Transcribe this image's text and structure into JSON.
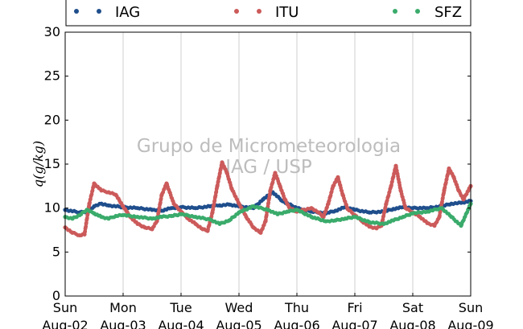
{
  "chart_data": {
    "type": "scatter",
    "title": "",
    "ylabel": "q(g/kg)",
    "xlabel": "",
    "ylim": [
      0,
      30
    ],
    "yticks": [
      0,
      5,
      10,
      15,
      20,
      25,
      30
    ],
    "xlim": [
      "2015-08-02T00:00",
      "2015-08-09T00:00"
    ],
    "xticks": [
      {
        "x": "2015-08-02T00:00",
        "day": "Sun",
        "date": "Aug-02"
      },
      {
        "x": "2015-08-03T00:00",
        "day": "Mon",
        "date": "Aug-03"
      },
      {
        "x": "2015-08-04T00:00",
        "day": "Tue",
        "date": "Aug-04"
      },
      {
        "x": "2015-08-05T00:00",
        "day": "Wed",
        "date": "Aug-05"
      },
      {
        "x": "2015-08-06T00:00",
        "day": "Thu",
        "date": "Aug-06"
      },
      {
        "x": "2015-08-07T00:00",
        "day": "Fri",
        "date": "Aug-07"
      },
      {
        "x": "2015-08-08T00:00",
        "day": "Sat",
        "date": "Aug-08"
      },
      {
        "x": "2015-08-09T00:00",
        "day": "Sun",
        "date": "Aug-09"
      }
    ],
    "grid": "vertical",
    "legend_position": "top",
    "watermark": [
      "Grupo de Micrometeorologia",
      "IAG / USP"
    ],
    "series": [
      {
        "name": "IAG",
        "color": "#1f4e8c",
        "x": [
          "2015-08-02T00:00",
          "2015-08-02T06:00",
          "2015-08-02T09:00",
          "2015-08-02T12:00",
          "2015-08-02T15:00",
          "2015-08-02T18:00",
          "2015-08-03T00:00",
          "2015-08-03T06:00",
          "2015-08-03T12:00",
          "2015-08-03T16:00",
          "2015-08-03T20:00",
          "2015-08-04T00:00",
          "2015-08-04T06:00",
          "2015-08-04T12:00",
          "2015-08-04T16:00",
          "2015-08-04T20:00",
          "2015-08-05T00:00",
          "2015-08-05T06:00",
          "2015-08-05T10:00",
          "2015-08-05T14:00",
          "2015-08-05T18:00",
          "2015-08-06T00:00",
          "2015-08-06T06:00",
          "2015-08-06T12:00",
          "2015-08-06T16:00",
          "2015-08-06T20:00",
          "2015-08-07T00:00",
          "2015-08-07T06:00",
          "2015-08-07T12:00",
          "2015-08-07T16:00",
          "2015-08-07T20:00",
          "2015-08-08T00:00",
          "2015-08-08T06:00",
          "2015-08-08T12:00",
          "2015-08-08T16:00",
          "2015-08-08T20:00",
          "2015-08-09T00:00"
        ],
        "y": [
          9.8,
          9.5,
          9.6,
          10.2,
          10.5,
          10.3,
          10.1,
          10.0,
          9.8,
          9.7,
          10.0,
          10.1,
          10.0,
          10.2,
          10.3,
          10.4,
          10.2,
          10.0,
          11.0,
          11.8,
          10.8,
          10.0,
          9.6,
          9.4,
          9.7,
          10.1,
          9.8,
          9.5,
          9.6,
          9.9,
          10.1,
          10.0,
          10.0,
          10.2,
          10.5,
          10.6,
          10.8
        ]
      },
      {
        "name": "ITU",
        "color": "#cc5a5a",
        "x": [
          "2015-08-02T00:00",
          "2015-08-02T03:00",
          "2015-08-02T06:00",
          "2015-08-02T08:00",
          "2015-08-02T10:00",
          "2015-08-02T12:00",
          "2015-08-02T15:00",
          "2015-08-02T18:00",
          "2015-08-02T21:00",
          "2015-08-03T00:00",
          "2015-08-03T03:00",
          "2015-08-03T06:00",
          "2015-08-03T09:00",
          "2015-08-03T12:00",
          "2015-08-03T14:00",
          "2015-08-03T16:00",
          "2015-08-03T18:00",
          "2015-08-03T21:00",
          "2015-08-04T00:00",
          "2015-08-04T03:00",
          "2015-08-04T06:00",
          "2015-08-04T09:00",
          "2015-08-04T11:00",
          "2015-08-04T13:00",
          "2015-08-04T15:00",
          "2015-08-04T17:00",
          "2015-08-04T19:00",
          "2015-08-04T21:00",
          "2015-08-05T00:00",
          "2015-08-05T03:00",
          "2015-08-05T06:00",
          "2015-08-05T09:00",
          "2015-08-05T11:00",
          "2015-08-05T13:00",
          "2015-08-05T15:00",
          "2015-08-05T17:00",
          "2015-08-05T19:00",
          "2015-08-05T21:00",
          "2015-08-06T00:00",
          "2015-08-06T03:00",
          "2015-08-06T06:00",
          "2015-08-06T09:00",
          "2015-08-06T11:00",
          "2015-08-06T13:00",
          "2015-08-06T15:00",
          "2015-08-06T17:00",
          "2015-08-06T19:00",
          "2015-08-06T21:00",
          "2015-08-07T00:00",
          "2015-08-07T03:00",
          "2015-08-07T06:00",
          "2015-08-07T09:00",
          "2015-08-07T11:00",
          "2015-08-07T13:00",
          "2015-08-07T15:00",
          "2015-08-07T17:00",
          "2015-08-07T19:00",
          "2015-08-07T21:00",
          "2015-08-08T00:00",
          "2015-08-08T03:00",
          "2015-08-08T06:00",
          "2015-08-08T09:00",
          "2015-08-08T11:00",
          "2015-08-08T13:00",
          "2015-08-08T15:00",
          "2015-08-08T17:00",
          "2015-08-08T19:00",
          "2015-08-08T21:00",
          "2015-08-09T00:00"
        ],
        "y": [
          7.8,
          7.2,
          6.9,
          7.0,
          10.5,
          12.8,
          12.0,
          11.8,
          11.5,
          10.2,
          9.0,
          8.2,
          7.8,
          7.6,
          8.5,
          11.5,
          12.8,
          10.5,
          9.6,
          8.8,
          8.2,
          7.6,
          7.4,
          9.5,
          12.5,
          15.2,
          14.0,
          12.2,
          10.5,
          9.0,
          7.8,
          7.2,
          8.5,
          12.0,
          14.0,
          12.5,
          11.0,
          10.0,
          9.6,
          9.8,
          10.0,
          9.5,
          9.0,
          10.5,
          12.5,
          13.5,
          11.5,
          9.9,
          9.2,
          8.5,
          7.9,
          7.7,
          8.0,
          10.5,
          12.5,
          14.8,
          12.0,
          10.0,
          9.5,
          9.0,
          8.3,
          8.0,
          9.0,
          12.0,
          14.5,
          13.5,
          12.0,
          11.0,
          12.5
        ]
      },
      {
        "name": "SFZ",
        "color": "#3aab6b",
        "x": [
          "2015-08-02T00:00",
          "2015-08-02T03:00",
          "2015-08-02T06:00",
          "2015-08-02T09:00",
          "2015-08-02T12:00",
          "2015-08-02T15:00",
          "2015-08-02T18:00",
          "2015-08-02T21:00",
          "2015-08-03T00:00",
          "2015-08-03T06:00",
          "2015-08-03T12:00",
          "2015-08-03T16:00",
          "2015-08-03T20:00",
          "2015-08-04T00:00",
          "2015-08-04T06:00",
          "2015-08-04T12:00",
          "2015-08-04T16:00",
          "2015-08-04T20:00",
          "2015-08-05T00:00",
          "2015-08-05T06:00",
          "2015-08-05T12:00",
          "2015-08-05T16:00",
          "2015-08-05T20:00",
          "2015-08-06T00:00",
          "2015-08-06T06:00",
          "2015-08-06T12:00",
          "2015-08-06T16:00",
          "2015-08-06T20:00",
          "2015-08-07T00:00",
          "2015-08-07T06:00",
          "2015-08-07T12:00",
          "2015-08-07T16:00",
          "2015-08-07T20:00",
          "2015-08-08T00:00",
          "2015-08-08T06:00",
          "2015-08-08T12:00",
          "2015-08-08T16:00",
          "2015-08-08T20:00",
          "2015-08-09T00:00"
        ],
        "y": [
          9.0,
          8.8,
          9.2,
          9.8,
          9.4,
          9.0,
          8.8,
          9.1,
          9.2,
          9.0,
          8.8,
          9.0,
          9.1,
          9.3,
          9.0,
          8.7,
          8.2,
          8.6,
          9.5,
          10.2,
          9.8,
          9.3,
          9.6,
          9.8,
          9.0,
          8.5,
          8.6,
          8.8,
          9.0,
          8.4,
          8.2,
          8.6,
          9.0,
          9.4,
          9.6,
          10.0,
          9.0,
          8.0,
          10.5
        ]
      }
    ]
  }
}
